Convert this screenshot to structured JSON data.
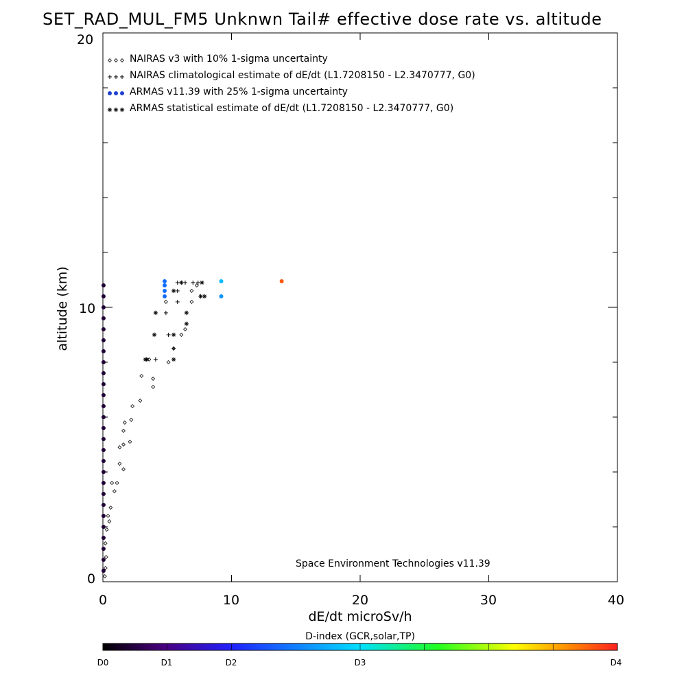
{
  "chart_data": {
    "type": "scatter",
    "title": "SET_RAD_MUL_FM5 Unknwn Tail#  effective dose rate vs. altitude",
    "xlabel": "dE/dt microSv/h",
    "ylabel": "altitude (km)",
    "xlim": [
      0,
      40
    ],
    "ylim": [
      0,
      20
    ],
    "x_ticks": [
      "0",
      "10",
      "20",
      "30",
      "40"
    ],
    "y_ticks": [
      "0",
      "10",
      "20"
    ],
    "legend_position": "top-left",
    "credit": "Space Environment Technologies v11.39",
    "legend": [
      {
        "marker": "diamond",
        "text": "NAIRAS v3 with 10% 1-sigma uncertainty"
      },
      {
        "marker": "plus",
        "text": "NAIRAS climatological estimate of dE/dt (L1.7208150 - L2.3470777, G0)"
      },
      {
        "marker": "dot",
        "text": "ARMAS v11.39 with 25% 1-sigma uncertainty"
      },
      {
        "marker": "asterisk",
        "text": "ARMAS statistical estimate of dE/dt (L1.7208150 - L2.3470777, G0)"
      }
    ],
    "series": [
      {
        "name": "NAIRAS v3 with 10% 1-sigma uncertainty",
        "marker": "diamond",
        "points": [
          [
            0.15,
            0.2
          ],
          [
            0.2,
            0.5
          ],
          [
            0.25,
            0.9
          ],
          [
            0.2,
            1.4
          ],
          [
            0.3,
            1.9
          ],
          [
            0.4,
            2.4
          ],
          [
            0.6,
            2.7
          ],
          [
            0.5,
            2.2
          ],
          [
            0.7,
            3.6
          ],
          [
            0.9,
            3.3
          ],
          [
            1.1,
            3.6
          ],
          [
            1.3,
            4.3
          ],
          [
            1.6,
            4.1
          ],
          [
            1.3,
            4.9
          ],
          [
            1.6,
            5.0
          ],
          [
            2.1,
            5.1
          ],
          [
            1.6,
            5.5
          ],
          [
            1.7,
            5.8
          ],
          [
            2.2,
            5.9
          ],
          [
            2.3,
            6.4
          ],
          [
            2.9,
            6.6
          ],
          [
            3.9,
            7.1
          ],
          [
            3.0,
            7.5
          ],
          [
            3.9,
            7.4
          ],
          [
            3.6,
            8.1
          ],
          [
            5.1,
            8.0
          ],
          [
            5.5,
            8.5
          ],
          [
            6.1,
            9.0
          ],
          [
            6.4,
            9.2
          ],
          [
            4.9,
            10.2
          ],
          [
            6.9,
            10.2
          ],
          [
            6.9,
            10.6
          ],
          [
            7.3,
            10.8
          ]
        ]
      },
      {
        "name": "NAIRAS climatological estimate of dE/dt (L1.7208150 - L2.3470777, G0)",
        "marker": "plus",
        "points": [
          [
            4.1,
            8.1
          ],
          [
            5.1,
            9.0
          ],
          [
            4.9,
            9.8
          ],
          [
            5.8,
            10.2
          ],
          [
            5.8,
            10.6
          ],
          [
            5.8,
            10.9
          ],
          [
            6.4,
            10.9
          ],
          [
            7.0,
            10.9
          ],
          [
            7.4,
            10.9
          ],
          [
            5.5,
            8.5
          ]
        ]
      },
      {
        "name": "ARMAS v11.39 with 25% 1-sigma uncertainty",
        "marker": "dot",
        "colored": true,
        "points": [
          [
            0.05,
            0.4
          ],
          [
            0.05,
            0.8
          ],
          [
            0.05,
            1.2
          ],
          [
            0.05,
            1.6
          ],
          [
            0.05,
            2.0
          ],
          [
            0.05,
            2.4
          ],
          [
            0.05,
            2.8
          ],
          [
            0.05,
            3.2
          ],
          [
            0.05,
            3.6
          ],
          [
            0.05,
            4.0
          ],
          [
            0.05,
            4.4
          ],
          [
            0.05,
            4.8
          ],
          [
            0.05,
            5.2
          ],
          [
            0.05,
            5.6
          ],
          [
            0.05,
            6.0
          ],
          [
            0.05,
            6.4
          ],
          [
            0.05,
            6.8
          ],
          [
            0.05,
            7.2
          ],
          [
            0.05,
            7.6
          ],
          [
            0.05,
            8.0
          ],
          [
            0.05,
            8.4
          ],
          [
            0.05,
            8.8
          ],
          [
            0.05,
            9.2
          ],
          [
            0.05,
            9.6
          ],
          [
            0.05,
            10.0
          ],
          [
            0.05,
            10.4
          ],
          [
            0.05,
            10.8
          ],
          [
            4.8,
            10.4
          ],
          [
            4.8,
            10.6
          ],
          [
            4.8,
            10.8
          ],
          [
            4.8,
            10.95
          ],
          [
            9.2,
            10.4
          ],
          [
            9.2,
            10.95
          ],
          [
            13.9,
            10.95
          ]
        ],
        "dindex": [
          0.05,
          0.05,
          0.05,
          0.05,
          0.05,
          0.05,
          0.05,
          0.05,
          0.05,
          0.05,
          0.05,
          0.05,
          0.05,
          0.05,
          0.05,
          0.05,
          0.05,
          0.05,
          0.05,
          0.05,
          0.05,
          0.05,
          0.05,
          0.05,
          0.05,
          0.05,
          0.05,
          0.35,
          0.35,
          0.35,
          0.35,
          0.4,
          0.45,
          0.95
        ]
      },
      {
        "name": "ARMAS statistical estimate of dE/dt (L1.7208150 - L2.3470777, G0)",
        "marker": "asterisk",
        "points": [
          [
            3.3,
            8.1
          ],
          [
            3.4,
            8.1
          ],
          [
            4.0,
            9.0
          ],
          [
            4.1,
            9.8
          ],
          [
            5.5,
            9.0
          ],
          [
            5.5,
            10.6
          ],
          [
            6.5,
            9.8
          ],
          [
            6.5,
            9.4
          ],
          [
            6.1,
            10.9
          ],
          [
            7.6,
            10.4
          ],
          [
            7.9,
            10.4
          ],
          [
            7.7,
            10.9
          ],
          [
            5.5,
            8.1
          ]
        ]
      }
    ],
    "colorbar": {
      "title": "D-index (GCR,solar,TP)",
      "labels": [
        "D0",
        "D1",
        "D2",
        "D3",
        "D4"
      ],
      "label_positions": [
        0,
        0.125,
        0.25,
        0.5,
        1.0
      ],
      "colors": [
        "#000000",
        "#4a0080",
        "#2020ff",
        "#00e0ff",
        "#20ff20",
        "#ffff00",
        "#ff9000",
        "#ff2020"
      ]
    }
  }
}
